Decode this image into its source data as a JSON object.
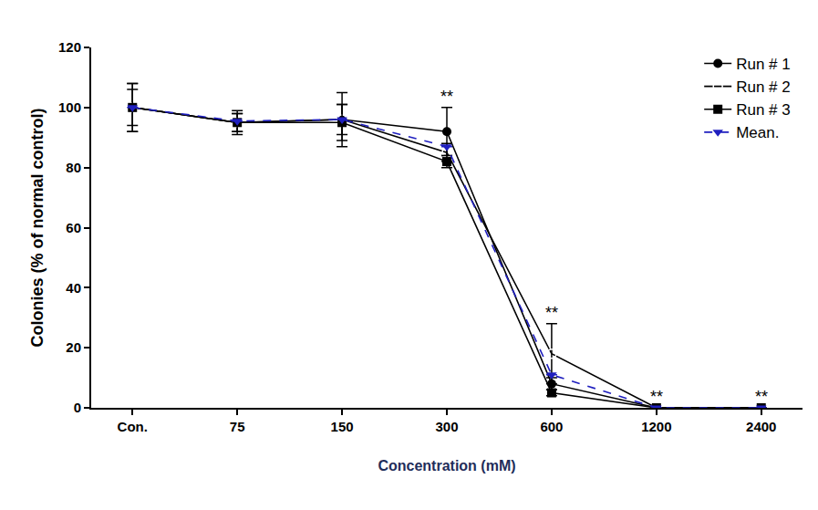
{
  "chart_data": {
    "type": "line",
    "x_label": "Concentration (mM)",
    "y_label": "Colonies (% of normal control)",
    "categories": [
      "Con.",
      "75",
      "150",
      "300",
      "600",
      "1200",
      "2400"
    ],
    "series": [
      {
        "name": "Run # 1",
        "color": "#000000",
        "marker": "circle",
        "line_style": "solid",
        "values": [
          100,
          95,
          96,
          92,
          8,
          0,
          0
        ],
        "errors": [
          8,
          3,
          5,
          8,
          2,
          0,
          0
        ]
      },
      {
        "name": "Run # 2",
        "color": "#000000",
        "marker": "circle-open",
        "line_style": "solid",
        "values": [
          100,
          95,
          96,
          85,
          18,
          0,
          0
        ],
        "errors": [
          8,
          4,
          9,
          3,
          10,
          0,
          0
        ]
      },
      {
        "name": "Run # 3",
        "color": "#000000",
        "marker": "square",
        "line_style": "solid",
        "values": [
          100,
          95,
          95,
          82,
          5,
          0,
          0
        ],
        "errors": [
          6,
          3,
          6,
          2,
          1,
          0,
          0
        ]
      },
      {
        "name": "Mean.",
        "color": "#1f1fbf",
        "marker": "triangle-down",
        "line_style": "dash",
        "values": [
          100,
          95.5,
          96,
          87,
          11,
          0,
          0
        ],
        "errors": [
          0,
          0,
          0,
          0,
          0,
          0,
          0
        ]
      }
    ],
    "annotations": [
      {
        "text": "**",
        "category": "300"
      },
      {
        "text": "**",
        "category": "600"
      },
      {
        "text": "**",
        "category": "1200"
      },
      {
        "text": "**",
        "category": "2400"
      }
    ],
    "ylim": [
      0,
      120
    ],
    "yticks": [
      0,
      20,
      40,
      60,
      80,
      100,
      120
    ],
    "grid": false,
    "legend": "top right"
  }
}
